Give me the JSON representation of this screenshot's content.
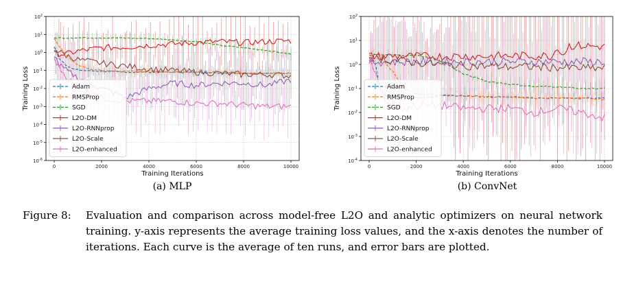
{
  "colors": {
    "Adam": "#1f77b4",
    "RMSProp": "#ff7f0e",
    "SGD": "#2ca02c",
    "L2O-DM": "#d62728",
    "L2O-RNNprop": "#9467bd",
    "L2O-Scale": "#8c564b",
    "L2O-enhanced": "#e377c2"
  },
  "figure": {
    "caption_label": "Figure 8:",
    "caption_text": "Evaluation and comparison across model-free L2O and analytic optimizers on neural network training. y-axis represents the average training loss values, and the x-axis denotes the number of iterations. Each curve is the average of ten runs, and error bars are plotted."
  },
  "chart_data": [
    {
      "type": "line",
      "subtitle": "(a) MLP",
      "xlabel": "Training Iterations",
      "ylabel": "Training Loss",
      "yscale": "log",
      "xlim": [
        0,
        10000
      ],
      "ylim_exp": [
        -6,
        2
      ],
      "xticks": [
        0,
        2000,
        4000,
        6000,
        8000,
        10000
      ],
      "yticks": [
        "10^-6",
        "10^-5",
        "10^-4",
        "10^-3",
        "10^-2",
        "10^-1",
        "10^0",
        "10^1",
        "10^2"
      ],
      "grid": true,
      "legend": "lower-left",
      "error_bars": true,
      "series": [
        {
          "name": "Adam",
          "style": "dashed",
          "x": [
            0,
            200,
            500,
            800,
            1200,
            2000,
            3000,
            4000,
            5000,
            6000,
            7000,
            8000,
            9000,
            10000
          ],
          "y": [
            2.0,
            0.5,
            0.2,
            0.12,
            0.1,
            0.09,
            0.08,
            0.08,
            0.08,
            0.08,
            0.07,
            0.07,
            0.07,
            0.07
          ]
        },
        {
          "name": "RMSProp",
          "style": "dashed",
          "x": [
            0,
            300,
            700,
            1000,
            1500,
            2000,
            3000,
            4000,
            5000,
            6000,
            7000,
            8000,
            9000,
            10000
          ],
          "y": [
            6,
            1.5,
            0.4,
            0.2,
            0.12,
            0.1,
            0.09,
            0.09,
            0.08,
            0.08,
            0.08,
            0.07,
            0.07,
            0.07
          ]
        },
        {
          "name": "SGD",
          "style": "dashed",
          "x": [
            0,
            1000,
            2000,
            3000,
            4000,
            5000,
            6000,
            7000,
            8000,
            9000,
            10000
          ],
          "y": [
            6.5,
            6.5,
            6.5,
            6.3,
            6.0,
            5.0,
            4.0,
            2.5,
            1.8,
            1.3,
            0.8
          ]
        },
        {
          "name": "L2O-DM",
          "style": "solid",
          "x": [
            0,
            500,
            1000,
            2000,
            3000,
            4000,
            5000,
            6000,
            7000,
            8000,
            9000,
            10000
          ],
          "y": [
            0.9,
            0.8,
            1.2,
            1.8,
            2.0,
            2.5,
            3.0,
            3.5,
            4.0,
            3.5,
            4.0,
            4.5
          ]
        },
        {
          "name": "L2O-RNNprop",
          "style": "solid",
          "x": [
            0,
            200,
            500,
            1000,
            1500,
            2000,
            2500,
            3000,
            4000,
            5000,
            6000,
            7000,
            8000,
            9000,
            10000
          ],
          "y": [
            0.8,
            0.2,
            0.1,
            0.04,
            0.02,
            0.01,
            0.006,
            0.003,
            0.01,
            0.02,
            0.015,
            0.02,
            0.02,
            0.015,
            0.03
          ]
        },
        {
          "name": "L2O-Scale",
          "style": "solid",
          "x": [
            0,
            500,
            1000,
            2000,
            3000,
            4000,
            5000,
            6000,
            7000,
            8000,
            9000,
            10000
          ],
          "y": [
            1.5,
            0.7,
            0.4,
            0.25,
            0.18,
            0.12,
            0.1,
            0.08,
            0.07,
            0.06,
            0.06,
            0.05
          ]
        },
        {
          "name": "L2O-enhanced",
          "style": "solid",
          "x": [
            0,
            200,
            500,
            1000,
            2000,
            3000,
            4000,
            5000,
            6000,
            7000,
            8000,
            9000,
            10000
          ],
          "y": [
            0.5,
            0.15,
            0.05,
            0.01,
            0.003,
            0.002,
            0.002,
            0.002,
            0.0015,
            0.0015,
            0.0012,
            0.001,
            0.001
          ]
        }
      ]
    },
    {
      "type": "line",
      "subtitle": "(b) ConvNet",
      "xlabel": "Training Iterations",
      "ylabel": "Training Loss",
      "yscale": "log",
      "xlim": [
        0,
        10000
      ],
      "ylim_exp": [
        -4,
        2
      ],
      "xticks": [
        0,
        2000,
        4000,
        6000,
        8000,
        10000
      ],
      "yticks": [
        "10^-4",
        "10^-3",
        "10^-2",
        "10^-1",
        "10^0",
        "10^1",
        "10^2"
      ],
      "grid": true,
      "legend": "lower-left",
      "error_bars": true,
      "series": [
        {
          "name": "Adam",
          "style": "dashed",
          "x": [
            0,
            200,
            300,
            400,
            500,
            700,
            1000,
            1500,
            2000,
            3000,
            4000,
            5000,
            6000,
            7000,
            8000,
            9000,
            10000
          ],
          "y": [
            2.0,
            1.5,
            0.8,
            0.2,
            0.08,
            0.05,
            0.05,
            0.04,
            0.04,
            0.05,
            0.05,
            0.045,
            0.045,
            0.04,
            0.04,
            0.04,
            0.04
          ]
        },
        {
          "name": "RMSProp",
          "style": "dashed",
          "x": [
            0,
            500,
            1000,
            1500,
            2000,
            3000,
            4000,
            5000,
            6000,
            7000,
            8000,
            9000,
            10000
          ],
          "y": [
            2.0,
            1.8,
            0.5,
            0.1,
            0.06,
            0.05,
            0.05,
            0.045,
            0.045,
            0.04,
            0.04,
            0.04,
            0.035
          ]
        },
        {
          "name": "SGD",
          "style": "dashed",
          "x": [
            0,
            1000,
            2000,
            2500,
            3000,
            3500,
            4000,
            5000,
            6000,
            7000,
            8000,
            9000,
            10000
          ],
          "y": [
            2.5,
            2.5,
            2.4,
            2.0,
            1.5,
            0.8,
            0.4,
            0.2,
            0.15,
            0.12,
            0.12,
            0.1,
            0.1
          ]
        },
        {
          "name": "L2O-DM",
          "style": "solid",
          "x": [
            0,
            1000,
            2000,
            3000,
            4000,
            5000,
            6000,
            7000,
            7800,
            8000,
            8200,
            8500,
            9000,
            10000
          ],
          "y": [
            2.2,
            2.2,
            2.2,
            2.2,
            2.2,
            2.2,
            2.3,
            2.3,
            2.3,
            6.0,
            2.5,
            6.0,
            6.0,
            5.5
          ]
        },
        {
          "name": "L2O-RNNprop",
          "style": "solid",
          "x": [
            0,
            1000,
            2000,
            3000,
            4000,
            5000,
            6000,
            7000,
            8000,
            9000,
            10000
          ],
          "y": [
            1.3,
            1.3,
            1.3,
            1.3,
            1.3,
            1.3,
            1.3,
            1.3,
            1.3,
            1.3,
            1.3
          ]
        },
        {
          "name": "L2O-Scale",
          "style": "solid",
          "x": [
            0,
            1000,
            2000,
            3000,
            4000,
            5000,
            6000,
            7000,
            8000,
            9000,
            10000
          ],
          "y": [
            2.0,
            1.5,
            1.2,
            1.0,
            0.9,
            0.85,
            0.8,
            0.8,
            0.75,
            0.7,
            0.7
          ]
        },
        {
          "name": "L2O-enhanced",
          "style": "solid",
          "x": [
            0,
            200,
            500,
            700,
            1000,
            1500,
            2000,
            3000,
            4000,
            5000,
            6000,
            7000,
            8000,
            9000,
            10000
          ],
          "y": [
            2.0,
            0.5,
            0.1,
            0.03,
            0.02,
            0.015,
            0.02,
            0.02,
            0.015,
            0.015,
            0.015,
            0.01,
            0.015,
            0.01,
            0.006
          ]
        }
      ]
    }
  ]
}
